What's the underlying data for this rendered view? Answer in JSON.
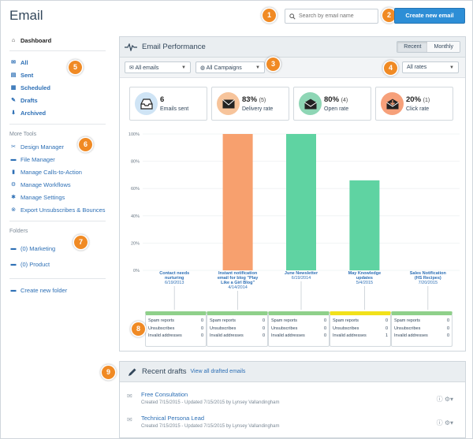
{
  "page": {
    "title": "Email"
  },
  "header": {
    "search_placeholder": "Search by email name",
    "create_button": "Create new email"
  },
  "badges": [
    "1",
    "2",
    "3",
    "4",
    "5",
    "6",
    "7",
    "8",
    "9"
  ],
  "sidebar": {
    "dashboard": "Dashboard",
    "items": [
      {
        "label": "All",
        "icon": "envelope-icon"
      },
      {
        "label": "Sent",
        "icon": "sent-icon"
      },
      {
        "label": "Scheduled",
        "icon": "calendar-icon"
      },
      {
        "label": "Drafts",
        "icon": "pencil-icon"
      },
      {
        "label": "Archived",
        "icon": "archive-icon"
      }
    ],
    "more_tools_heading": "More Tools",
    "tools": [
      {
        "label": "Design Manager",
        "icon": "tools-icon"
      },
      {
        "label": "File Manager",
        "icon": "folder-icon"
      },
      {
        "label": "Manage Calls-to-Action",
        "icon": "cta-icon"
      },
      {
        "label": "Manage Workflows",
        "icon": "workflow-icon"
      },
      {
        "label": "Manage Settings",
        "icon": "gear-icon"
      },
      {
        "label": "Export Unsubscribes & Bounces",
        "icon": "export-icon"
      }
    ],
    "folders_heading": "Folders",
    "folders": [
      {
        "label": "(0) Marketing"
      },
      {
        "label": "(0) Product"
      }
    ],
    "create_folder": "Create new folder"
  },
  "performance": {
    "title": "Email Performance",
    "toggle": [
      "Recent",
      "Monthly"
    ],
    "toggle_active": "Recent",
    "filters": {
      "emails": "All emails",
      "campaigns": "All Campaigns",
      "rates": "All rates"
    },
    "stats": [
      {
        "value": "6",
        "sub": "",
        "label": "Emails sent",
        "color": "#cfe4f5",
        "icon": "inbox-icon"
      },
      {
        "value": "83%",
        "sub": "(5)",
        "label": "Delivery rate",
        "color": "#f7c49b",
        "icon": "envelope-icon"
      },
      {
        "value": "80%",
        "sub": "(4)",
        "label": "Open rate",
        "color": "#8ed6b5",
        "icon": "open-envelope-icon"
      },
      {
        "value": "20%",
        "sub": "(1)",
        "label": "Click rate",
        "color": "#f6a07a",
        "icon": "click-icon"
      }
    ]
  },
  "chart_data": {
    "type": "bar",
    "yticks": [
      "100%",
      "80%",
      "60%",
      "40%",
      "20%",
      "0%"
    ],
    "ylim": [
      0,
      100
    ],
    "categories": [
      {
        "name": "Contact needs nurturing",
        "date": "6/19/2013"
      },
      {
        "name": "Instant notification email for blog \"Play Like a Girl Blog\"",
        "date": "4/14/2014"
      },
      {
        "name": "June Newsletter",
        "date": "6/19/2014"
      },
      {
        "name": "May Knowledge updates",
        "date": "5/4/2015"
      },
      {
        "name": "Sales Notification (HS Recipes)",
        "date": "7/20/2015"
      }
    ],
    "values": [
      0,
      100,
      100,
      66,
      0
    ],
    "bar_colors": [
      "#f7a06e",
      "#f7a06e",
      "#5fd3a2",
      "#5fd3a2",
      "#5fd3a2"
    ]
  },
  "health_cards": [
    {
      "color": "#8fd08a",
      "spam": "0",
      "unsub": "0",
      "invalid": "0"
    },
    {
      "color": "#8fd08a",
      "spam": "0",
      "unsub": "0",
      "invalid": "0"
    },
    {
      "color": "#8fd08a",
      "spam": "0",
      "unsub": "0",
      "invalid": "0"
    },
    {
      "color": "#f2e11a",
      "spam": "0",
      "unsub": "0",
      "invalid": "1"
    },
    {
      "color": "#8fd08a",
      "spam": "0",
      "unsub": "0",
      "invalid": "0"
    }
  ],
  "health_labels": {
    "spam": "Spam reports",
    "unsub": "Unsubscribes",
    "invalid": "Invalid addresses"
  },
  "recent_drafts": {
    "title": "Recent drafts",
    "view_all": "View all drafted emails",
    "items": [
      {
        "name": "Free Consultation",
        "meta": "Created 7/15/2015 - Updated 7/15/2015 by Lynsey Vallandingham"
      },
      {
        "name": "Technical Persona Lead",
        "meta": "Created 7/15/2015 - Updated 7/15/2015 by Lynsey Vallandingham"
      }
    ]
  }
}
